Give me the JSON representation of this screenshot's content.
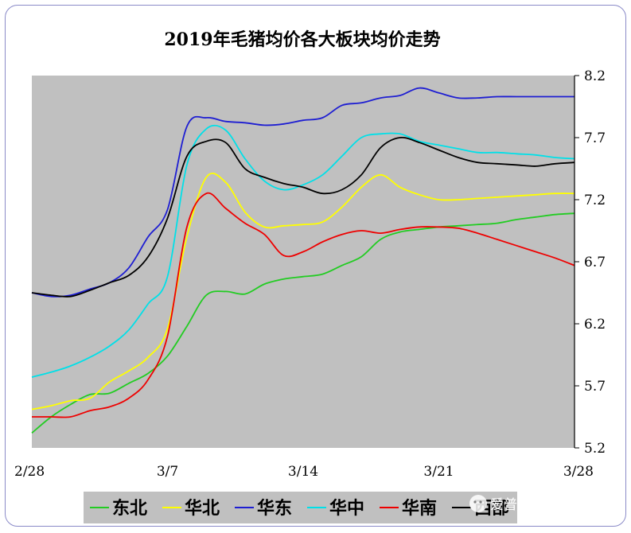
{
  "chart_data": {
    "type": "line",
    "title": "2019年毛猪均价各大板块均价走势",
    "xlabel": "",
    "ylabel": "",
    "x_ticks": [
      "2/28",
      "3/7",
      "3/14",
      "3/21",
      "3/28"
    ],
    "y_ticks": [
      "8.2",
      "7.7",
      "7.2",
      "6.7",
      "6.2",
      "5.7",
      "5.2"
    ],
    "ylim": [
      5.2,
      8.2
    ],
    "grid": false,
    "legend_position": "bottom",
    "x": [
      "2/28",
      "3/1",
      "3/2",
      "3/3",
      "3/4",
      "3/5",
      "3/6",
      "3/7",
      "3/8",
      "3/9",
      "3/10",
      "3/11",
      "3/12",
      "3/13",
      "3/14",
      "3/15",
      "3/16",
      "3/17",
      "3/18",
      "3/19",
      "3/20",
      "3/21",
      "3/22",
      "3/23",
      "3/24",
      "3/25",
      "3/26",
      "3/27",
      "3/28"
    ],
    "series": [
      {
        "name": "东北",
        "color": "#22cc22",
        "values": [
          5.32,
          5.45,
          5.55,
          5.63,
          5.64,
          5.72,
          5.8,
          5.94,
          6.18,
          6.43,
          6.46,
          6.44,
          6.52,
          6.56,
          6.58,
          6.6,
          6.67,
          6.74,
          6.88,
          6.94,
          6.96,
          6.98,
          6.99,
          7.0,
          7.01,
          7.04,
          7.06,
          7.08,
          7.09
        ]
      },
      {
        "name": "华北",
        "color": "#ffff00",
        "values": [
          5.51,
          5.54,
          5.58,
          5.6,
          5.73,
          5.82,
          5.93,
          6.16,
          6.9,
          7.38,
          7.34,
          7.1,
          6.98,
          6.99,
          7.0,
          7.02,
          7.14,
          7.3,
          7.4,
          7.3,
          7.24,
          7.2,
          7.2,
          7.21,
          7.22,
          7.23,
          7.24,
          7.25,
          7.25
        ]
      },
      {
        "name": "华东",
        "color": "#1e1ed2",
        "values": [
          6.45,
          6.42,
          6.43,
          6.48,
          6.53,
          6.65,
          6.9,
          7.12,
          7.79,
          7.86,
          7.83,
          7.82,
          7.8,
          7.81,
          7.84,
          7.86,
          7.96,
          7.98,
          8.02,
          8.04,
          8.1,
          8.06,
          8.02,
          8.02,
          8.03,
          8.03,
          8.03,
          8.03,
          8.03
        ]
      },
      {
        "name": "华中",
        "color": "#00e0e8",
        "values": [
          5.77,
          5.81,
          5.86,
          5.93,
          6.02,
          6.15,
          6.36,
          6.58,
          7.48,
          7.77,
          7.76,
          7.53,
          7.35,
          7.28,
          7.32,
          7.4,
          7.55,
          7.7,
          7.73,
          7.73,
          7.67,
          7.64,
          7.61,
          7.58,
          7.58,
          7.57,
          7.56,
          7.54,
          7.53
        ]
      },
      {
        "name": "华南",
        "color": "#ee0000",
        "values": [
          5.45,
          5.45,
          5.45,
          5.5,
          5.53,
          5.6,
          5.75,
          6.1,
          6.98,
          7.25,
          7.13,
          7.01,
          6.92,
          6.75,
          6.78,
          6.86,
          6.92,
          6.95,
          6.93,
          6.96,
          6.98,
          6.98,
          6.97,
          6.93,
          6.88,
          6.83,
          6.78,
          6.73,
          6.67
        ]
      },
      {
        "name": "西部",
        "color": "#000000",
        "values": [
          6.45,
          6.43,
          6.42,
          6.47,
          6.53,
          6.59,
          6.74,
          7.05,
          7.55,
          7.67,
          7.66,
          7.45,
          7.38,
          7.33,
          7.3,
          7.25,
          7.28,
          7.4,
          7.62,
          7.7,
          7.66,
          7.6,
          7.54,
          7.5,
          7.49,
          7.48,
          7.47,
          7.49,
          7.5
        ]
      }
    ]
  },
  "watermark": "爱普罗斯每日资讯"
}
